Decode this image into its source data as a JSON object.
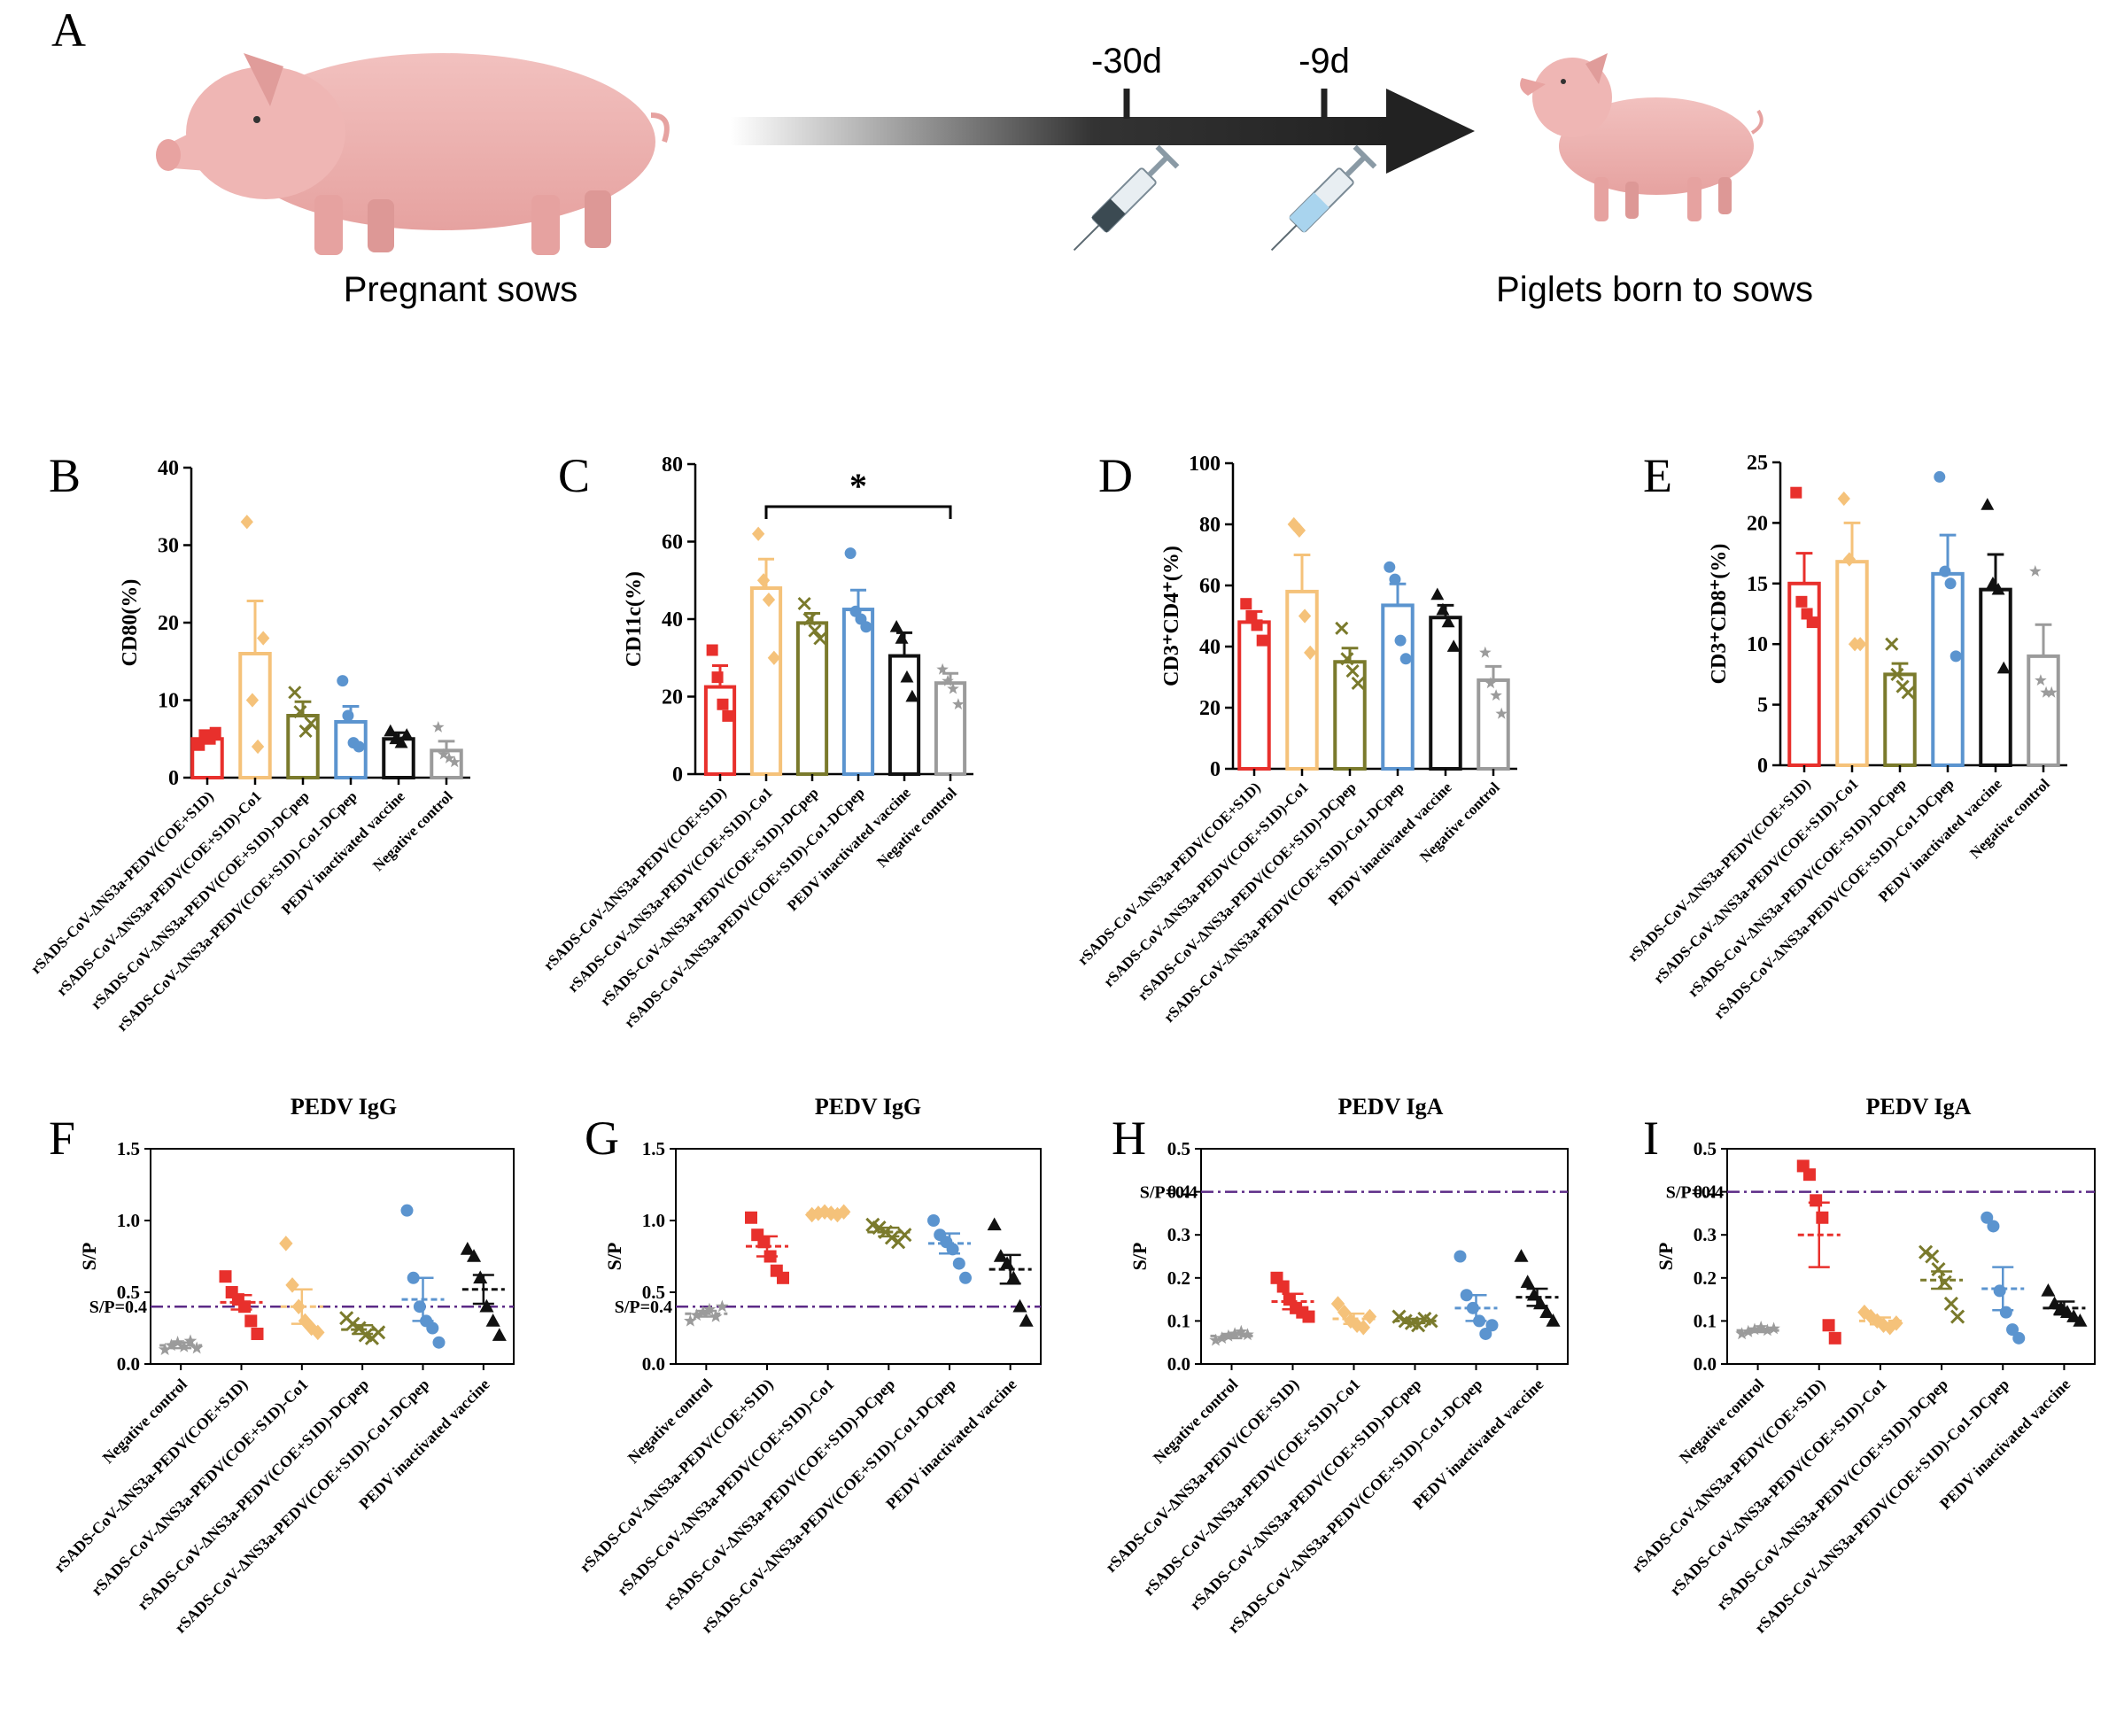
{
  "panelA": {
    "letter": "A",
    "sow_label": "Pregnant sows",
    "piglet_label": "Piglets born to sows",
    "time_labels": [
      "-30d",
      "-9d"
    ]
  },
  "group_colors": {
    "red": "#e8302c",
    "orange": "#f5c27a",
    "olive": "#7a7a2c",
    "blue": "#5b94cf",
    "black": "#111111",
    "grey": "#9b9b9b",
    "threshold": "#5b2a86"
  },
  "chart_data": [
    {
      "panel": "B",
      "type": "bar",
      "ylabel": "CD80(%)",
      "ylim": [
        0,
        40
      ],
      "yticks": [
        0,
        10,
        20,
        30,
        40
      ],
      "categories": [
        "rSADS-CoV-ΔNS3a-PEDV(COE+S1D)",
        "rSADS-CoV-ΔNS3a-PEDV(COE+S1D)-Co1",
        "rSADS-CoV-ΔNS3a-PEDV(COE+S1D)-DCpep",
        "rSADS-CoV-ΔNS3a-PEDV(COE+S1D)-Co1-DCpep",
        "PEDV inactivated vaccine",
        "Negative control"
      ],
      "values": [
        5.0,
        16.0,
        8.0,
        7.2,
        5.0,
        3.5
      ],
      "sem": [
        0.7,
        6.8,
        1.8,
        2.0,
        0.8,
        1.2
      ],
      "points": [
        [
          4.2,
          5.5,
          5.0,
          5.8
        ],
        [
          33,
          10,
          4,
          18
        ],
        [
          11,
          8.5,
          6,
          7
        ],
        [
          12.5,
          8,
          4.5,
          4
        ],
        [
          6,
          5,
          4.5,
          5.5
        ],
        [
          6.5,
          3,
          2.5,
          2
        ]
      ],
      "significance": null
    },
    {
      "panel": "C",
      "type": "bar",
      "ylabel": "CD11c(%)",
      "ylim": [
        0,
        80
      ],
      "yticks": [
        0,
        20,
        40,
        60,
        80
      ],
      "categories": [
        "rSADS-CoV-ΔNS3a-PEDV(COE+S1D)",
        "rSADS-CoV-ΔNS3a-PEDV(COE+S1D)-Co1",
        "rSADS-CoV-ΔNS3a-PEDV(COE+S1D)-DCpep",
        "rSADS-CoV-ΔNS3a-PEDV(COE+S1D)-Co1-DCpep",
        "PEDV inactivated vaccine",
        "Negative control"
      ],
      "values": [
        22.5,
        48.0,
        39.0,
        42.5,
        30.5,
        23.5
      ],
      "sem": [
        5.5,
        7.5,
        2.5,
        5.0,
        6.0,
        2.5
      ],
      "points": [
        [
          32,
          25,
          18,
          15
        ],
        [
          62,
          50,
          45,
          30
        ],
        [
          44,
          40,
          37,
          35
        ],
        [
          57,
          42,
          40,
          38
        ],
        [
          38,
          35,
          25,
          20
        ],
        [
          27,
          24,
          22,
          18
        ]
      ],
      "significance": {
        "from": 1,
        "to": 5,
        "label": "*"
      }
    },
    {
      "panel": "D",
      "type": "bar",
      "ylabel": "CD3⁺CD4⁺(%)",
      "ylim": [
        0,
        100
      ],
      "yticks": [
        0,
        20,
        40,
        60,
        80,
        100
      ],
      "categories": [
        "rSADS-CoV-ΔNS3a-PEDV(COE+S1D)",
        "rSADS-CoV-ΔNS3a-PEDV(COE+S1D)-Co1",
        "rSADS-CoV-ΔNS3a-PEDV(COE+S1D)-DCpep",
        "rSADS-CoV-ΔNS3a-PEDV(COE+S1D)-Co1-DCpep",
        "PEDV inactivated vaccine",
        "Negative control"
      ],
      "values": [
        48.0,
        58.0,
        35.0,
        53.5,
        49.5,
        29.0
      ],
      "sem": [
        3.5,
        12.0,
        4.5,
        7.0,
        4.0,
        4.5
      ],
      "points": [
        [
          54,
          50,
          47,
          42
        ],
        [
          80,
          78,
          50,
          38
        ],
        [
          46,
          36,
          32,
          28
        ],
        [
          66,
          62,
          42,
          36
        ],
        [
          57,
          52,
          48,
          40
        ],
        [
          38,
          28,
          24,
          18
        ]
      ],
      "significance": null
    },
    {
      "panel": "E",
      "type": "bar",
      "ylabel": "CD3⁺CD8⁺(%)",
      "ylim": [
        0,
        25
      ],
      "yticks": [
        0,
        5,
        10,
        15,
        20,
        25
      ],
      "categories": [
        "rSADS-CoV-ΔNS3a-PEDV(COE+S1D)",
        "rSADS-CoV-ΔNS3a-PEDV(COE+S1D)-Co1",
        "rSADS-CoV-ΔNS3a-PEDV(COE+S1D)-DCpep",
        "rSADS-CoV-ΔNS3a-PEDV(COE+S1D)-Co1-DCpep",
        "PEDV inactivated vaccine",
        "Negative control"
      ],
      "values": [
        15.0,
        16.8,
        7.5,
        15.8,
        14.5,
        9.0
      ],
      "sem": [
        2.5,
        3.2,
        0.9,
        3.2,
        2.9,
        2.6
      ],
      "points": [
        [
          22.5,
          13.5,
          12.5,
          11.8
        ],
        [
          22,
          17,
          10,
          10
        ],
        [
          10,
          7.5,
          6.5,
          6
        ],
        [
          23.8,
          16,
          15,
          9
        ],
        [
          21.5,
          15,
          14.5,
          8
        ],
        [
          16,
          7,
          6,
          6
        ]
      ],
      "significance": null
    },
    {
      "panel": "F",
      "type": "scatter",
      "title": "PEDV  IgG",
      "ylabel": "S/P",
      "ylim": [
        0,
        1.5
      ],
      "yticks": [
        0,
        0.5,
        1.0,
        1.5
      ],
      "ytick_labels": [
        "0.0",
        "0.5",
        "1.0",
        "1.5"
      ],
      "threshold": 0.4,
      "threshold_label": "S/P=0.4",
      "categories": [
        "Negative control",
        "rSADS-CoV-ΔNS3a-PEDV(COE+S1D)",
        "rSADS-CoV-ΔNS3a-PEDV(COE+S1D)-Co1",
        "rSADS-CoV-ΔNS3a-PEDV(COE+S1D)-DCpep",
        "rSADS-CoV-ΔNS3a-PEDV(COE+S1D)-Co1-DCpep",
        "PEDV inactivated vaccine"
      ],
      "means": [
        0.13,
        0.43,
        0.4,
        0.24,
        0.45,
        0.52
      ],
      "sem": [
        0.02,
        0.05,
        0.12,
        0.03,
        0.15,
        0.1
      ],
      "points": [
        [
          0.1,
          0.13,
          0.15,
          0.12,
          0.16,
          0.11
        ],
        [
          0.61,
          0.5,
          0.45,
          0.4,
          0.3,
          0.21
        ],
        [
          0.84,
          0.55,
          0.4,
          0.3,
          0.25,
          0.22
        ],
        [
          0.32,
          0.28,
          0.25,
          0.2,
          0.18,
          0.22
        ],
        [
          1.07,
          0.6,
          0.4,
          0.3,
          0.25,
          0.15
        ],
        [
          0.8,
          0.75,
          0.6,
          0.4,
          0.3,
          0.2
        ]
      ]
    },
    {
      "panel": "G",
      "type": "scatter",
      "title": "PEDV IgG",
      "ylabel": "S/P",
      "ylim": [
        0,
        1.5
      ],
      "yticks": [
        0,
        0.5,
        1.0,
        1.5
      ],
      "ytick_labels": [
        "0.0",
        "0.5",
        "1.0",
        "1.5"
      ],
      "threshold": 0.4,
      "threshold_label": "S/P=0.4",
      "categories": [
        "Negative control",
        "rSADS-CoV-ΔNS3a-PEDV(COE+S1D)",
        "rSADS-CoV-ΔNS3a-PEDV(COE+S1D)-Co1",
        "rSADS-CoV-ΔNS3a-PEDV(COE+S1D)-DCpep",
        "rSADS-CoV-ΔNS3a-PEDV(COE+S1D)-Co1-DCpep",
        "PEDV inactivated vaccine"
      ],
      "means": [
        0.35,
        0.82,
        1.05,
        0.92,
        0.84,
        0.66
      ],
      "sem": [
        0.02,
        0.07,
        0.01,
        0.03,
        0.07,
        0.1
      ],
      "points": [
        [
          0.3,
          0.34,
          0.36,
          0.38,
          0.33,
          0.4
        ],
        [
          1.02,
          0.9,
          0.85,
          0.75,
          0.65,
          0.6
        ],
        [
          1.04,
          1.05,
          1.06,
          1.05,
          1.04,
          1.06
        ],
        [
          0.97,
          0.95,
          0.92,
          0.88,
          0.85,
          0.9
        ],
        [
          1.0,
          0.9,
          0.85,
          0.8,
          0.7,
          0.6
        ],
        [
          0.97,
          0.75,
          0.7,
          0.6,
          0.4,
          0.3
        ]
      ]
    },
    {
      "panel": "H",
      "type": "scatter",
      "title": "PEDV  IgA",
      "ylabel": "S/P",
      "ylim": [
        0,
        0.5
      ],
      "yticks": [
        0,
        0.1,
        0.2,
        0.3,
        0.4,
        0.5
      ],
      "ytick_labels": [
        "0.0",
        "0.1",
        "0.2",
        "0.3",
        "0.4",
        "0.5"
      ],
      "threshold": 0.4,
      "threshold_label": "S/P=0.4",
      "categories": [
        "Negative control",
        "rSADS-CoV-ΔNS3a-PEDV(COE+S1D)",
        "rSADS-CoV-ΔNS3a-PEDV(COE+S1D)-Co1",
        "rSADS-CoV-ΔNS3a-PEDV(COE+S1D)-DCpep",
        "rSADS-CoV-ΔNS3a-PEDV(COE+S1D)-Co1-DCpep",
        "PEDV inactivated vaccine"
      ],
      "means": [
        0.065,
        0.145,
        0.105,
        0.1,
        0.13,
        0.155
      ],
      "sem": [
        0.005,
        0.018,
        0.012,
        0.005,
        0.03,
        0.02
      ],
      "points": [
        [
          0.055,
          0.06,
          0.065,
          0.07,
          0.075,
          0.068
        ],
        [
          0.2,
          0.18,
          0.15,
          0.13,
          0.12,
          0.11
        ],
        [
          0.14,
          0.12,
          0.1,
          0.09,
          0.085,
          0.11
        ],
        [
          0.11,
          0.1,
          0.095,
          0.09,
          0.105,
          0.1
        ],
        [
          0.25,
          0.16,
          0.13,
          0.1,
          0.07,
          0.09
        ],
        [
          0.25,
          0.19,
          0.16,
          0.14,
          0.12,
          0.1
        ]
      ]
    },
    {
      "panel": "I",
      "type": "scatter",
      "title": "PEDV IgA",
      "ylabel": "S/P",
      "ylim": [
        0,
        0.5
      ],
      "yticks": [
        0,
        0.1,
        0.2,
        0.3,
        0.4,
        0.5
      ],
      "ytick_labels": [
        "0.0",
        "0.1",
        "0.2",
        "0.3",
        "0.4",
        "0.5"
      ],
      "threshold": 0.4,
      "threshold_label": "S/P=0.4",
      "categories": [
        "Negative control",
        "rSADS-CoV-ΔNS3a-PEDV(COE+S1D)",
        "rSADS-CoV-ΔNS3a-PEDV(COE+S1D)-Co1",
        "rSADS-CoV-ΔNS3a-PEDV(COE+S1D)-DCpep",
        "rSADS-CoV-ΔNS3a-PEDV(COE+S1D)-Co1-DCpep",
        "PEDV inactivated vaccine"
      ],
      "means": [
        0.078,
        0.3,
        0.1,
        0.195,
        0.175,
        0.13
      ],
      "sem": [
        0.004,
        0.075,
        0.008,
        0.02,
        0.05,
        0.015
      ],
      "points": [
        [
          0.07,
          0.075,
          0.08,
          0.085,
          0.078,
          0.082
        ],
        [
          0.46,
          0.44,
          0.38,
          0.34,
          0.09,
          0.06
        ],
        [
          0.12,
          0.11,
          0.1,
          0.09,
          0.085,
          0.095
        ],
        [
          0.26,
          0.25,
          0.22,
          0.19,
          0.14,
          0.11
        ],
        [
          0.34,
          0.32,
          0.17,
          0.12,
          0.08,
          0.06
        ],
        [
          0.17,
          0.14,
          0.13,
          0.12,
          0.11,
          0.1
        ]
      ]
    }
  ]
}
